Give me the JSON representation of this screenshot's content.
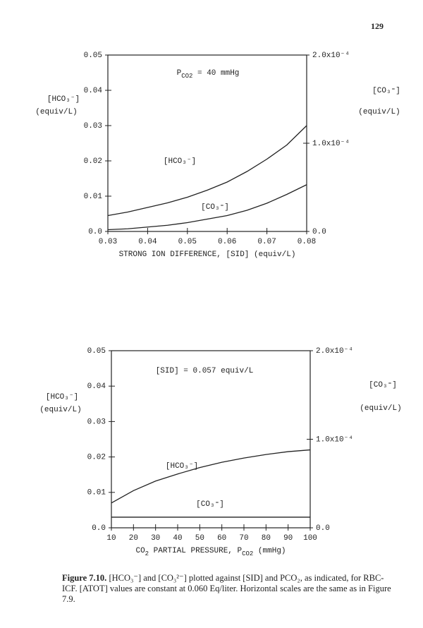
{
  "page_number": "129",
  "chart_data": [
    {
      "type": "line",
      "annotation": [
        "P",
        "CO2",
        " = 40 mmHg"
      ],
      "x_label": [
        "STRONG ION DIFFERENCE, [SID] (equiv/L)"
      ],
      "y_label": [
        "[HCO₃⁻]",
        "(equiv/L)"
      ],
      "y2_label": [
        "[CO₃⁼]",
        "(equiv/L)"
      ],
      "x": [
        0.03,
        0.035,
        0.04,
        0.045,
        0.05,
        0.055,
        0.06,
        0.065,
        0.07,
        0.075,
        0.08
      ],
      "series": [
        {
          "name": "[HCO₃⁻]",
          "color": "#222222",
          "values": [
            0.0045,
            0.0055,
            0.0068,
            0.0081,
            0.0097,
            0.0117,
            0.014,
            0.017,
            0.0205,
            0.0245,
            0.03
          ]
        },
        {
          "name": "[CO₃⁼]",
          "color": "#222222",
          "axis": "y2",
          "values": [
            2e-06,
            3e-06,
            5e-06,
            7e-06,
            1e-05,
            1.4e-05,
            1.8e-05,
            2.4e-05,
            3.2e-05,
            4.2e-05,
            5.3e-05
          ]
        }
      ],
      "xlim": [
        0.03,
        0.08
      ],
      "xticks": [
        0.03,
        0.04,
        0.05,
        0.06,
        0.07,
        0.08
      ],
      "ylim": [
        0,
        0.05
      ],
      "yticks": [
        {
          "value": 0,
          "label": "0.0"
        },
        0.01,
        0.02,
        0.03,
        0.04,
        0.05
      ],
      "y2lim": [
        0,
        0.0002
      ],
      "y2ticks": [
        {
          "value": 0,
          "label": "0.0"
        },
        {
          "value": 0.0001,
          "label": "1.0x10⁻⁴"
        },
        {
          "value": 0.0002,
          "label": "2.0x10⁻⁴"
        }
      ]
    },
    {
      "type": "line",
      "annotation": [
        "[SID] = 0.057 equiv/L"
      ],
      "x_label": [
        "CO",
        "2",
        " PARTIAL PRESSURE, P",
        "CO2",
        " (mmHg)"
      ],
      "y_label": [
        "[HCO₃⁻]",
        "(equiv/L)"
      ],
      "y2_label": [
        "[CO₃⁼]",
        "(equiv/L)"
      ],
      "x": [
        10,
        20,
        30,
        40,
        50,
        60,
        70,
        80,
        90,
        100
      ],
      "series": [
        {
          "name": "[HCO₃⁻]",
          "color": "#222222",
          "values": [
            0.007,
            0.0105,
            0.0132,
            0.0152,
            0.017,
            0.0185,
            0.0197,
            0.0207,
            0.0215,
            0.022
          ]
        },
        {
          "name": "[CO₃⁼]",
          "color": "#222222",
          "axis": "y2",
          "values": [
            1.2e-05,
            1.2e-05,
            1.2e-05,
            1.2e-05,
            1.2e-05,
            1.2e-05,
            1.2e-05,
            1.2e-05,
            1.2e-05,
            1.2e-05
          ]
        }
      ],
      "xlim": [
        10,
        100
      ],
      "xticks": [
        10,
        20,
        30,
        40,
        50,
        60,
        70,
        80,
        90,
        100
      ],
      "ylim": [
        0,
        0.05
      ],
      "yticks": [
        {
          "value": 0,
          "label": "0.0"
        },
        0.01,
        0.02,
        0.03,
        0.04,
        0.05
      ],
      "y2lim": [
        0,
        0.0002
      ],
      "y2ticks": [
        {
          "value": 0,
          "label": "0.0"
        },
        {
          "value": 0.0001,
          "label": "1.0x10⁻⁴"
        },
        {
          "value": 0.0002,
          "label": "2.0x10⁻⁴"
        }
      ]
    }
  ],
  "caption": {
    "label": "Figure 7.10.",
    "text": "[HCO₃⁻] and [CO₃²⁻] plotted against [SID] and PCO₂, as indicated, for RBC-ICF. [ATOT] values are constant at 0.060 Eq/liter. Horizontal scales are the same as in Figure 7.9."
  }
}
